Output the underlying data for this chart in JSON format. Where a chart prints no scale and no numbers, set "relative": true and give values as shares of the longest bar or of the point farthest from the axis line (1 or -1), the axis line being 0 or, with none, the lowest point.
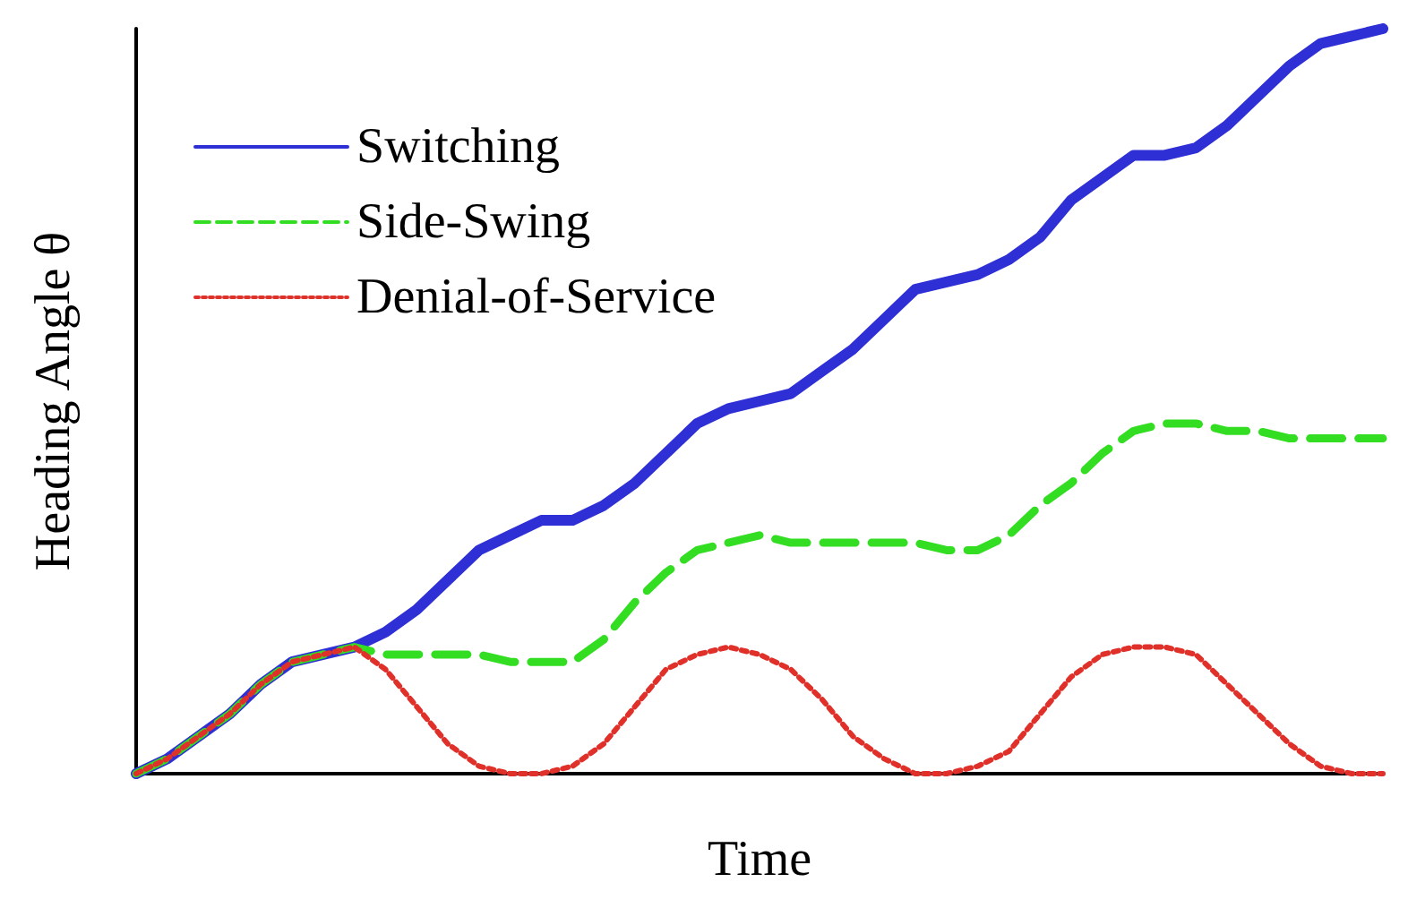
{
  "chart_data": {
    "type": "line",
    "relative": true,
    "xlabel": "Time",
    "ylabel": "Heading Angle θ",
    "legend": "top left",
    "grid": false,
    "marker": "none",
    "categories": [
      null,
      null,
      null,
      null,
      null,
      null,
      null,
      null,
      null,
      null,
      null,
      null,
      null,
      null,
      null,
      null,
      null,
      null,
      null,
      null,
      null,
      null,
      null,
      null,
      null,
      null,
      null,
      null,
      null,
      null,
      null,
      null,
      null,
      null,
      null,
      null,
      null,
      null,
      null,
      null,
      null
    ],
    "series": [
      {
        "name": "Switching",
        "color": "#2f2fd6",
        "line_style": "solid",
        "values": [
          0,
          0.02,
          0.05,
          0.08,
          0.12,
          0.15,
          0.16,
          0.17,
          0.19,
          0.22,
          0.26,
          0.3,
          0.32,
          0.34,
          0.34,
          0.36,
          0.39,
          0.43,
          0.47,
          0.49,
          0.5,
          0.51,
          0.54,
          0.57,
          0.61,
          0.65,
          0.66,
          0.67,
          0.69,
          0.72,
          0.77,
          0.8,
          0.83,
          0.83,
          0.84,
          0.87,
          0.91,
          0.95,
          0.98,
          0.99,
          1
        ]
      },
      {
        "name": "Side-Swing",
        "color": "#33dd22",
        "line_style": "dashed",
        "values": [
          0,
          0.02,
          0.05,
          0.08,
          0.12,
          0.15,
          0.16,
          0.17,
          0.16,
          0.16,
          0.16,
          0.16,
          0.15,
          0.15,
          0.15,
          0.18,
          0.23,
          0.27,
          0.3,
          0.31,
          0.32,
          0.31,
          0.31,
          0.31,
          0.31,
          0.31,
          0.3,
          0.3,
          0.32,
          0.36,
          0.39,
          0.43,
          0.46,
          0.47,
          0.47,
          0.46,
          0.46,
          0.45,
          0.45,
          0.45,
          0.45
        ]
      },
      {
        "name": "Denial-of-Service",
        "color": "#e0302a",
        "line_style": "dotted",
        "values": [
          0,
          0.02,
          0.05,
          0.08,
          0.12,
          0.15,
          0.16,
          0.17,
          0.14,
          0.09,
          0.04,
          0.01,
          0,
          0,
          0.01,
          0.04,
          0.09,
          0.14,
          0.16,
          0.17,
          0.16,
          0.14,
          0.1,
          0.05,
          0.02,
          0,
          0,
          0.01,
          0.03,
          0.08,
          0.13,
          0.16,
          0.17,
          0.17,
          0.16,
          0.12,
          0.08,
          0.04,
          0.01,
          0,
          0
        ]
      }
    ]
  }
}
